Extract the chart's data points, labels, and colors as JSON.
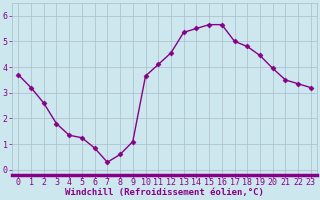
{
  "x": [
    0,
    1,
    2,
    3,
    4,
    5,
    6,
    7,
    8,
    9,
    10,
    11,
    12,
    13,
    14,
    15,
    16,
    17,
    18,
    19,
    20,
    21,
    22,
    23
  ],
  "y": [
    3.7,
    3.2,
    2.6,
    1.8,
    1.35,
    1.25,
    0.85,
    0.3,
    0.6,
    1.1,
    3.65,
    4.1,
    4.55,
    5.35,
    5.5,
    5.65,
    5.65,
    5.0,
    4.8,
    4.45,
    3.95,
    3.5,
    3.35,
    3.2
  ],
  "line_color": "#880088",
  "marker": "D",
  "marker_size": 2.5,
  "linewidth": 1.0,
  "xlabel": "Windchill (Refroidissement éolien,°C)",
  "xlim": [
    -0.5,
    23.5
  ],
  "ylim": [
    -0.2,
    6.5
  ],
  "yticks": [
    0,
    1,
    2,
    3,
    4,
    5,
    6
  ],
  "xticks": [
    0,
    1,
    2,
    3,
    4,
    5,
    6,
    7,
    8,
    9,
    10,
    11,
    12,
    13,
    14,
    15,
    16,
    17,
    18,
    19,
    20,
    21,
    22,
    23
  ],
  "background_color": "#cce8ee",
  "grid_color": "#aabbcc",
  "tick_label_color": "#880088",
  "xlabel_color": "#880088",
  "bottom_bar_color": "#880088",
  "xlabel_fontsize": 6.5,
  "tick_fontsize": 6.0
}
